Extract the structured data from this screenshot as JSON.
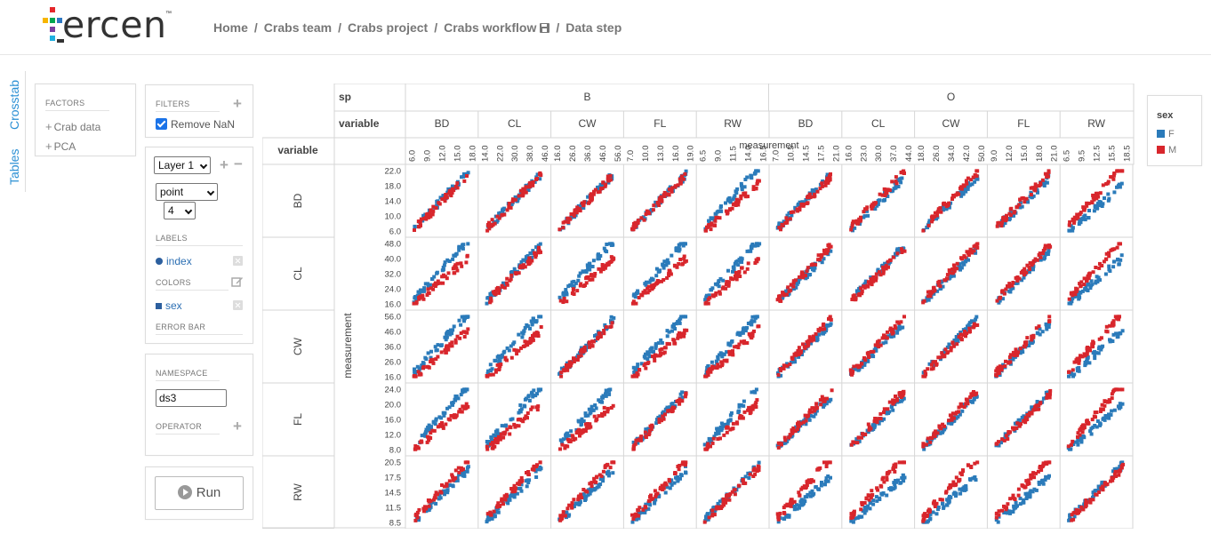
{
  "header": {
    "logo_text": "ercen",
    "logo_tm": "™",
    "breadcrumb": [
      "Home",
      "Crabs team",
      "Crabs project",
      "Crabs workflow",
      "Data step"
    ],
    "separator": "/"
  },
  "tabs": {
    "crosstab": "Crosstab",
    "tables": "Tables"
  },
  "factors": {
    "title": "FACTORS",
    "items": [
      "Crab data",
      "PCA"
    ]
  },
  "filters": {
    "title": "FILTERS",
    "remove_nan": "Remove NaN"
  },
  "layer": {
    "layer_select": "Layer 1",
    "geom_select": "point",
    "size_select": "4",
    "labels_title": "LABELS",
    "label_item": "index",
    "colors_title": "COLORS",
    "color_item": "sex",
    "errorbar_title": "ERROR BAR"
  },
  "namespace": {
    "title": "NAMESPACE",
    "value": "ds3",
    "operator_title": "OPERATOR"
  },
  "run": {
    "label": "Run"
  },
  "legend": {
    "title": "sex",
    "items": [
      {
        "label": "F",
        "color": "#2b7bba"
      },
      {
        "label": "M",
        "color": "#d8262c"
      }
    ]
  },
  "crosstab": {
    "col_header_label": "sp",
    "col_var_label": "variable",
    "row_var_label": "variable",
    "x_axis_title": "measurement",
    "y_axis_title": "measurement",
    "species": [
      "B",
      "O"
    ],
    "variables": [
      "BD",
      "CL",
      "CW",
      "FL",
      "RW"
    ],
    "x_ticks": [
      [
        "6.0",
        "9.0",
        "12.0",
        "15.0",
        "18.0"
      ],
      [
        "14.0",
        "22.0",
        "30.0",
        "38.0",
        "46.0"
      ],
      [
        "16.0",
        "26.0",
        "36.0",
        "46.0",
        "56.0"
      ],
      [
        "7.0",
        "10.0",
        "13.0",
        "16.0",
        "19.0"
      ],
      [
        "6.5",
        "9.0",
        "11.5",
        "14.0",
        "16.5"
      ],
      [
        "7.0",
        "10.5",
        "14.5",
        "17.5",
        "21.0"
      ],
      [
        "16.0",
        "23.0",
        "30.0",
        "37.0",
        "44.0"
      ],
      [
        "18.0",
        "26.0",
        "34.0",
        "42.0",
        "50.0"
      ],
      [
        "9.0",
        "12.0",
        "15.0",
        "18.0",
        "21.0"
      ],
      [
        "6.5",
        "9.5",
        "12.5",
        "15.5",
        "18.5"
      ]
    ],
    "y_ticks": [
      [
        "22.0",
        "18.0",
        "14.0",
        "10.0",
        "6.0"
      ],
      [
        "48.0",
        "40.0",
        "32.0",
        "24.0",
        "16.0"
      ],
      [
        "56.0",
        "46.0",
        "36.0",
        "26.0",
        "16.0"
      ],
      [
        "24.0",
        "20.0",
        "16.0",
        "12.0",
        "8.0"
      ],
      [
        "20.5",
        "17.5",
        "14.5",
        "11.5",
        "8.5"
      ]
    ]
  },
  "chart_data": {
    "type": "scatter",
    "title": "",
    "xlabel": "measurement",
    "ylabel": "measurement",
    "facet_cols": [
      "B BD",
      "B CL",
      "B CW",
      "B FL",
      "B RW",
      "O BD",
      "O CL",
      "O CW",
      "O FL",
      "O RW"
    ],
    "facet_rows": [
      "BD",
      "CL",
      "CW",
      "FL",
      "RW"
    ],
    "series": [
      {
        "name": "F",
        "color": "#2b7bba"
      },
      {
        "name": "M",
        "color": "#d8262c"
      }
    ],
    "note": "Each panel shows a scatter of ~50 points per sex with strong positive linear relationship"
  }
}
